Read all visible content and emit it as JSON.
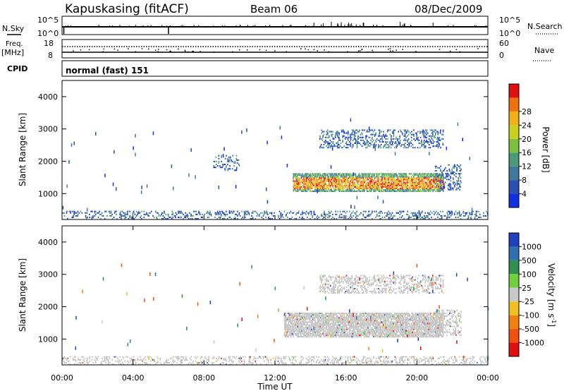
{
  "header": {
    "station": "Kapuskasing (fitACF)",
    "beam": "Beam 06",
    "date": "08/Dec/2009"
  },
  "top_panels": {
    "nsky_label": "N.Sky",
    "nsky_ticks": [
      "10^5",
      "10^0"
    ],
    "nsearch_label": "N.Search",
    "nsearch_ticks": [
      "10^5",
      "10^0"
    ],
    "freq_label": "Freq.",
    "freq_unit": "[MHz]",
    "freq_ticks": [
      "18",
      "8"
    ],
    "nave_label": "Nave",
    "nave_ticks": [
      "60",
      "0"
    ],
    "cpid_label": "CPID",
    "cpid_value": "normal (fast) 151"
  },
  "colors": {
    "power_scale": [
      "#1030e0",
      "#2a4fb0",
      "#3f7a9a",
      "#4a9a78",
      "#7cc040",
      "#c8d020",
      "#f0b018",
      "#f07010",
      "#e01010"
    ],
    "velocity_scale": [
      "#2040c0",
      "#3070b0",
      "#309050",
      "#70d040",
      "#c8c8c8",
      "#f0c020",
      "#f08010",
      "#f05010",
      "#e01010"
    ],
    "ground_scatter": "#c0c0c0"
  },
  "chart_data": [
    {
      "type": "heatmap",
      "panel": "power",
      "ylabel": "Slant Range [km]",
      "yticks": [
        "1000",
        "2000",
        "3000",
        "4000"
      ],
      "ylim": [
        200,
        4500
      ],
      "xlim": [
        "00:00",
        "24:00"
      ],
      "colorbar_label": "Power [dB]",
      "colorbar_ticks": [
        "4",
        "8",
        "12",
        "16",
        "20",
        "24",
        "28"
      ],
      "regions": [
        {
          "t_start": 0.0,
          "t_end": 24.0,
          "range_start": 200,
          "range_end": 450,
          "value_db": 8,
          "density": 0.35
        },
        {
          "t_start": 13.0,
          "t_end": 21.5,
          "range_start": 1050,
          "range_end": 1650,
          "value_db": 22,
          "density": 0.9
        },
        {
          "t_start": 14.5,
          "t_end": 21.5,
          "range_start": 2400,
          "range_end": 3000,
          "value_db": 10,
          "density": 0.4
        },
        {
          "t_start": 21.0,
          "t_end": 22.5,
          "range_start": 1100,
          "range_end": 1900,
          "value_db": 8,
          "density": 0.4
        },
        {
          "t_start": 8.5,
          "t_end": 10.0,
          "range_start": 1700,
          "range_end": 2200,
          "value_db": 6,
          "density": 0.25
        }
      ]
    },
    {
      "type": "heatmap",
      "panel": "velocity",
      "ylabel": "Slant Range [km]",
      "yticks": [
        "1000",
        "2000",
        "3000",
        "4000"
      ],
      "ylim": [
        200,
        4500
      ],
      "xlim": [
        "00:00",
        "24:00"
      ],
      "xlabel": "Time UT",
      "xticks": [
        "00:00",
        "04:00",
        "08:00",
        "12:00",
        "16:00",
        "20:00",
        "00:00"
      ],
      "colorbar_label": "Velocity [m s",
      "colorbar_label_sup": "-1",
      "colorbar_label_end": "]",
      "colorbar_ticks": [
        "1000",
        "500",
        "100",
        "25",
        "-25",
        "-100",
        "-500",
        "-1000"
      ],
      "regions": [
        {
          "t_start": 0.0,
          "t_end": 24.0,
          "range_start": 200,
          "range_end": 450,
          "value_ms": 0,
          "density": 0.35
        },
        {
          "t_start": 12.5,
          "t_end": 21.5,
          "range_start": 1050,
          "range_end": 1800,
          "value_ms": 0,
          "density": 0.9
        },
        {
          "t_start": 14.5,
          "t_end": 21.5,
          "range_start": 2400,
          "range_end": 3000,
          "value_ms": 0,
          "density": 0.45
        },
        {
          "t_start": 21.0,
          "t_end": 22.5,
          "range_start": 1100,
          "range_end": 1900,
          "value_ms": 0,
          "density": 0.4
        }
      ]
    }
  ]
}
